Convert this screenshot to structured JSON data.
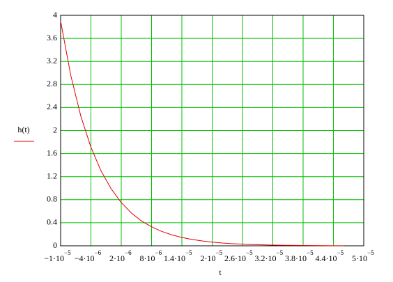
{
  "chart_data": {
    "type": "line",
    "x_label": "t",
    "x": [
      -1e-05,
      -8e-06,
      -6e-06,
      -4e-06,
      -2e-06,
      0,
      2e-06,
      4e-06,
      6e-06,
      8e-06,
      1e-05,
      1.2e-05,
      1.4e-05,
      1.6e-05,
      1.8e-05,
      2e-05,
      2.2e-05,
      2.4e-05,
      2.6e-05,
      2.8e-05,
      3e-05,
      3.2e-05,
      3.6e-05,
      4e-05,
      4.4e-05,
      4.6e-05
    ],
    "series": [
      {
        "name": "h(t)",
        "color": "#e00000",
        "values": [
          3.9,
          2.96,
          2.25,
          1.71,
          1.3,
          0.99,
          0.75,
          0.57,
          0.43,
          0.33,
          0.25,
          0.19,
          0.145,
          0.11,
          0.084,
          0.064,
          0.048,
          0.037,
          0.028,
          0.021,
          0.016,
          0.012,
          0.007,
          0.004,
          0.002,
          0.002
        ]
      }
    ],
    "xlim": [
      -1e-05,
      5e-05
    ],
    "xticks": [
      {
        "value": -1e-05,
        "label": "−1·10",
        "exponent": "−5"
      },
      {
        "value": -4e-06,
        "label": "−4·10",
        "exponent": "−6"
      },
      {
        "value": 2e-06,
        "label": "2·10",
        "exponent": "−6"
      },
      {
        "value": 8e-06,
        "label": "8·10",
        "exponent": "−6"
      },
      {
        "value": 1.4e-05,
        "label": "1.4·10",
        "exponent": "−5"
      },
      {
        "value": 2e-05,
        "label": "2·10",
        "exponent": "−5"
      },
      {
        "value": 2.6e-05,
        "label": "2.6·10",
        "exponent": "−5"
      },
      {
        "value": 3.2e-05,
        "label": "3.2·10",
        "exponent": "−5"
      },
      {
        "value": 3.8e-05,
        "label": "3.8·10",
        "exponent": "−5"
      },
      {
        "value": 4.4e-05,
        "label": "4.4·10",
        "exponent": "−5"
      },
      {
        "value": 5e-05,
        "label": "5·10",
        "exponent": "−5"
      }
    ],
    "ylim": [
      0,
      4
    ],
    "yticks": [
      0,
      0.4,
      0.8,
      1.2,
      1.6,
      2,
      2.4,
      2.8,
      3.2,
      3.6,
      4
    ],
    "grid": true,
    "grid_color": "#00c000"
  }
}
